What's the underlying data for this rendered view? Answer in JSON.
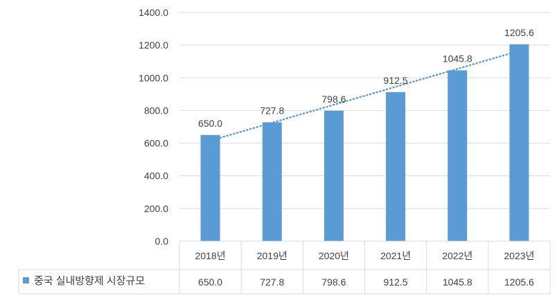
{
  "chart_data": {
    "type": "bar",
    "categories": [
      "2018년",
      "2019년",
      "2020년",
      "2021년",
      "2022년",
      "2023년"
    ],
    "series": [
      {
        "name": "중국 실내방향제 시장규모",
        "values": [
          650.0,
          727.8,
          798.6,
          912.5,
          1045.8,
          1205.6
        ],
        "labels": [
          "650.0",
          "727.8",
          "798.6",
          "912.5",
          "1045.8",
          "1205.6"
        ],
        "color": "#5B9BD5"
      }
    ],
    "trendline": {
      "type": "linear",
      "style": "dotted",
      "color": "#5B9BD5"
    },
    "ylim": [
      0,
      1400
    ],
    "y_ticks": [
      "0.0",
      "200.0",
      "400.0",
      "600.0",
      "800.0",
      "1000.0",
      "1200.0",
      "1400.0"
    ],
    "grid": true,
    "data_table": true,
    "legend": "data-table"
  }
}
